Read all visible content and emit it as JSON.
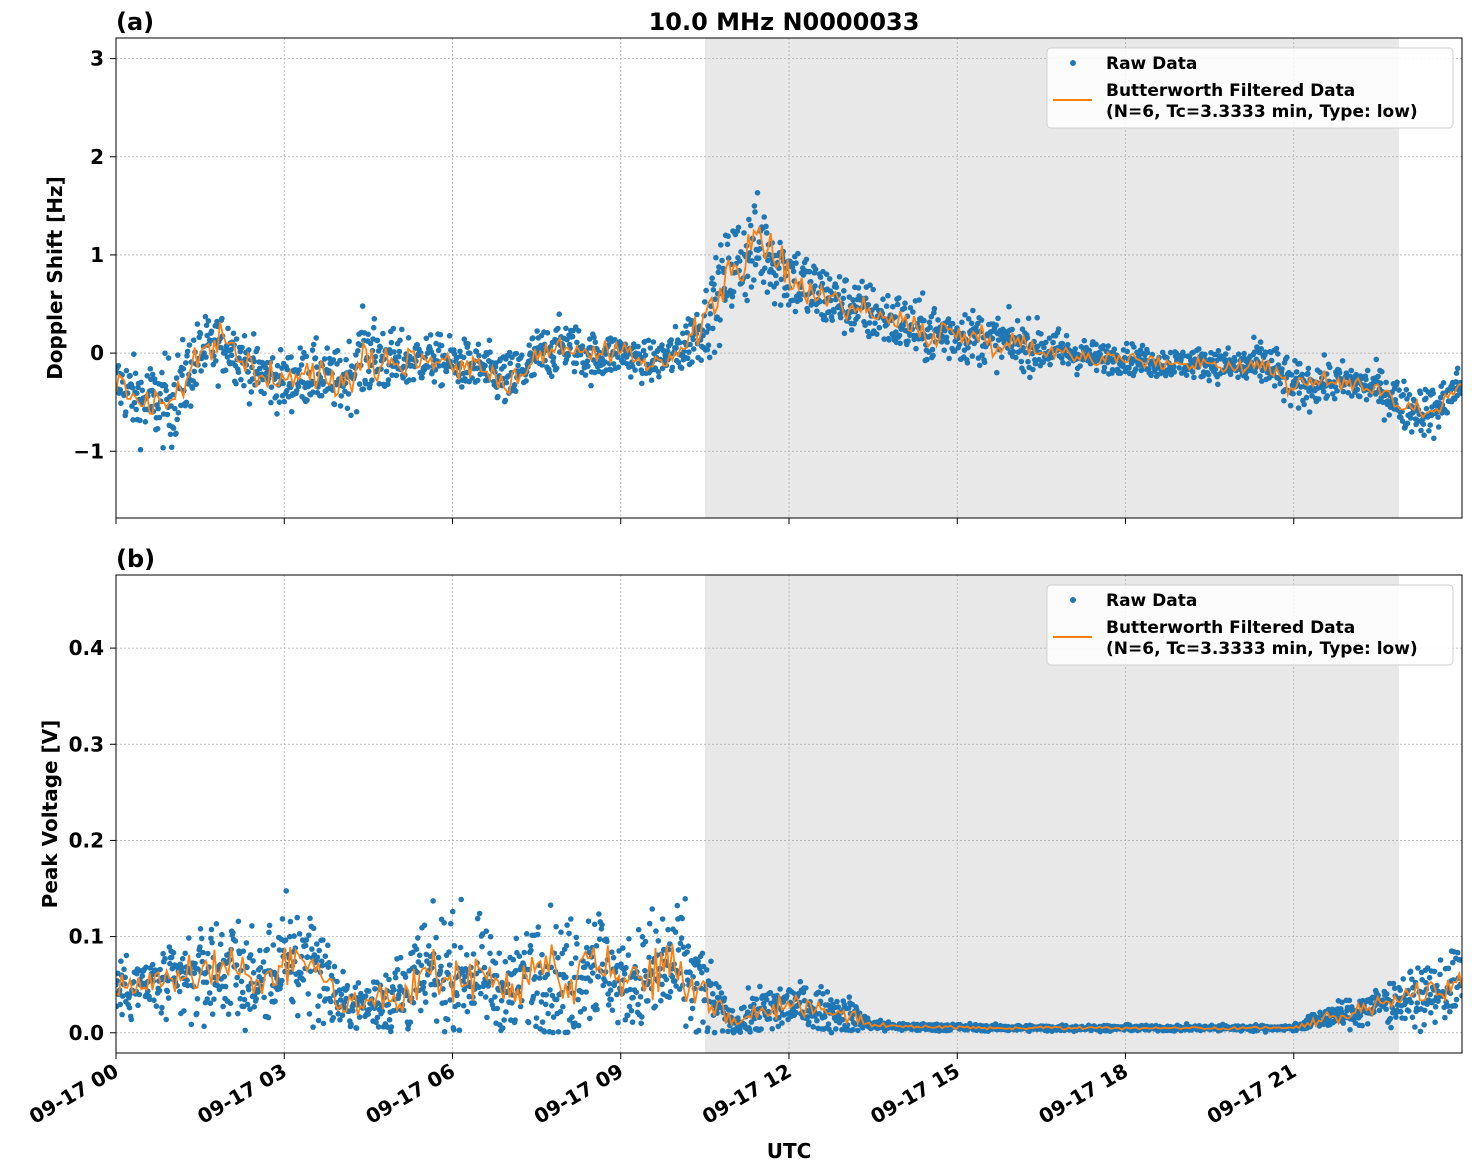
{
  "title": "10.0 MHz N0000033",
  "xlabel": "UTC",
  "x_ticks": [
    "09-17 00",
    "09-17 03",
    "09-17 06",
    "09-17 09",
    "09-17 12",
    "09-17 15",
    "09-17 18",
    "09-17 21"
  ],
  "x_tick_hours": [
    0,
    3,
    6,
    9,
    12,
    15,
    18,
    21
  ],
  "x_range_hours": [
    0,
    24
  ],
  "shaded_region_hours": [
    10.5,
    22.875
  ],
  "colors": {
    "raw": "#1f77b4",
    "filtered": "#ff7f0e",
    "shade": "#e8e8e8"
  },
  "legend": {
    "raw": "Raw Data",
    "filtered_line1": "Butterworth Filtered Data",
    "filtered_line2": "(N=6, Tc=3.3333 min, Type: low)",
    "placement": "upper right"
  },
  "chart_data": [
    {
      "type": "scatter+line",
      "panel_label": "(a)",
      "ylabel": "Doppler Shift [Hz]",
      "ylim": [
        -1.68,
        3.21
      ],
      "y_ticks": [
        3,
        2,
        1,
        0,
        -1
      ],
      "y_tick_labels": [
        "3",
        "2",
        "1",
        "0",
        "−1"
      ],
      "grid": true,
      "x_hours": [
        0,
        0.5,
        1,
        1.5,
        2,
        2.5,
        3,
        3.5,
        4,
        4.5,
        5,
        5.5,
        6,
        6.5,
        7,
        7.5,
        8,
        8.5,
        9,
        9.5,
        10,
        10.5,
        11,
        11.5,
        12,
        12.5,
        13,
        13.5,
        14,
        14.5,
        15,
        15.5,
        16,
        16.5,
        17,
        17.5,
        18,
        18.5,
        19,
        19.5,
        20,
        20.5,
        21,
        21.5,
        22,
        22.5,
        23,
        23.5,
        24
      ],
      "filtered": [
        -0.3,
        -0.5,
        -0.5,
        0.0,
        0.1,
        -0.2,
        -0.3,
        -0.2,
        -0.3,
        0.0,
        -0.1,
        -0.05,
        -0.1,
        -0.15,
        -0.3,
        -0.05,
        0.1,
        -0.05,
        0.0,
        -0.1,
        0.0,
        0.3,
        0.9,
        1.1,
        0.8,
        0.6,
        0.5,
        0.4,
        0.3,
        0.2,
        0.2,
        0.15,
        0.1,
        0.05,
        0.0,
        -0.05,
        -0.05,
        -0.1,
        -0.1,
        -0.1,
        -0.15,
        -0.1,
        -0.35,
        -0.3,
        -0.3,
        -0.35,
        -0.55,
        -0.6,
        -0.3
      ],
      "raw_spread": [
        0.3,
        0.4,
        0.45,
        0.35,
        0.3,
        0.3,
        0.3,
        0.3,
        0.3,
        0.45,
        0.3,
        0.25,
        0.25,
        0.25,
        0.3,
        0.3,
        0.25,
        0.25,
        0.2,
        0.2,
        0.25,
        0.35,
        0.5,
        0.5,
        0.4,
        0.35,
        0.3,
        0.3,
        0.3,
        0.3,
        0.3,
        0.25,
        0.25,
        0.25,
        0.2,
        0.15,
        0.15,
        0.15,
        0.15,
        0.15,
        0.2,
        0.25,
        0.25,
        0.2,
        0.2,
        0.2,
        0.25,
        0.25,
        0.2
      ]
    },
    {
      "type": "scatter+line",
      "panel_label": "(b)",
      "ylabel": "Peak Voltage [V]",
      "ylim": [
        -0.021,
        0.476
      ],
      "y_ticks": [
        0.0,
        0.1,
        0.2,
        0.3,
        0.4
      ],
      "y_tick_labels": [
        "0.0",
        "0.1",
        "0.2",
        "0.3",
        "0.4"
      ],
      "grid": true,
      "x_hours": [
        0,
        0.5,
        1,
        1.5,
        2,
        2.5,
        3,
        3.5,
        4,
        4.5,
        5,
        5.5,
        6,
        6.5,
        7,
        7.5,
        8,
        8.5,
        9,
        9.5,
        10,
        10.5,
        11,
        11.5,
        12,
        12.5,
        13,
        13.5,
        14,
        14.5,
        15,
        15.5,
        16,
        16.5,
        17,
        17.5,
        18,
        18.5,
        19,
        19.5,
        20,
        20.5,
        21,
        21.5,
        22,
        22.5,
        23,
        23.5,
        24
      ],
      "filtered": [
        0.045,
        0.05,
        0.05,
        0.06,
        0.07,
        0.05,
        0.07,
        0.08,
        0.03,
        0.03,
        0.04,
        0.06,
        0.06,
        0.06,
        0.04,
        0.07,
        0.05,
        0.08,
        0.05,
        0.06,
        0.07,
        0.04,
        0.01,
        0.02,
        0.03,
        0.025,
        0.02,
        0.008,
        0.006,
        0.006,
        0.006,
        0.005,
        0.005,
        0.005,
        0.005,
        0.005,
        0.005,
        0.005,
        0.005,
        0.005,
        0.005,
        0.005,
        0.005,
        0.015,
        0.02,
        0.03,
        0.035,
        0.04,
        0.055
      ],
      "raw_spread": [
        0.03,
        0.03,
        0.04,
        0.05,
        0.06,
        0.04,
        0.06,
        0.06,
        0.03,
        0.02,
        0.05,
        0.05,
        0.06,
        0.05,
        0.04,
        0.07,
        0.06,
        0.07,
        0.04,
        0.06,
        0.07,
        0.05,
        0.01,
        0.03,
        0.025,
        0.02,
        0.02,
        0.006,
        0.004,
        0.004,
        0.004,
        0.003,
        0.003,
        0.003,
        0.003,
        0.003,
        0.003,
        0.003,
        0.003,
        0.003,
        0.003,
        0.003,
        0.003,
        0.01,
        0.015,
        0.02,
        0.025,
        0.03,
        0.04
      ]
    }
  ]
}
